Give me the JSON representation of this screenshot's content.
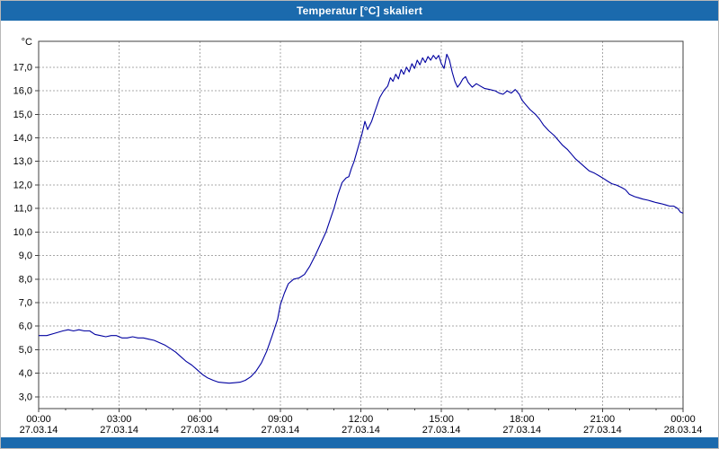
{
  "window": {
    "title": "Temperatur [°C] skaliert"
  },
  "colors": {
    "titlebar": "#1b6aad",
    "line": "#0000a0",
    "grid": "#a8a8a8",
    "frame": "#404040",
    "plot_background": "#ffffff"
  },
  "chart_data": {
    "type": "line",
    "title": "Temperatur [°C] skaliert",
    "xlabel": "",
    "ylabel": "°C",
    "grid": true,
    "legend": false,
    "x_range_hours": [
      0,
      24
    ],
    "y_range": [
      2.5,
      18.1
    ],
    "y_ticks": [
      {
        "value": 3,
        "label": "3,0"
      },
      {
        "value": 4,
        "label": "4,0"
      },
      {
        "value": 5,
        "label": "5,0"
      },
      {
        "value": 6,
        "label": "6,0"
      },
      {
        "value": 7,
        "label": "7,0"
      },
      {
        "value": 8,
        "label": "8,0"
      },
      {
        "value": 9,
        "label": "9,0"
      },
      {
        "value": 10,
        "label": "10,0"
      },
      {
        "value": 11,
        "label": "11,0"
      },
      {
        "value": 12,
        "label": "12,0"
      },
      {
        "value": 13,
        "label": "13,0"
      },
      {
        "value": 14,
        "label": "14,0"
      },
      {
        "value": 15,
        "label": "15,0"
      },
      {
        "value": 16,
        "label": "16,0"
      },
      {
        "value": 17,
        "label": "17,0"
      }
    ],
    "x_ticks": [
      {
        "hour": 0,
        "time": "00:00",
        "date": "27.03.14"
      },
      {
        "hour": 3,
        "time": "03:00",
        "date": "27.03.14"
      },
      {
        "hour": 6,
        "time": "06:00",
        "date": "27.03.14"
      },
      {
        "hour": 9,
        "time": "09:00",
        "date": "27.03.14"
      },
      {
        "hour": 12,
        "time": "12:00",
        "date": "27.03.14"
      },
      {
        "hour": 15,
        "time": "15:00",
        "date": "27.03.14"
      },
      {
        "hour": 18,
        "time": "18:00",
        "date": "27.03.14"
      },
      {
        "hour": 21,
        "time": "21:00",
        "date": "27.03.14"
      },
      {
        "hour": 24,
        "time": "00:00",
        "date": "28.03.14"
      }
    ],
    "series": [
      {
        "name": "Temperatur [°C]",
        "color": "#0000a0",
        "points": [
          [
            0.0,
            5.6
          ],
          [
            0.3,
            5.6
          ],
          [
            0.6,
            5.7
          ],
          [
            0.9,
            5.8
          ],
          [
            1.1,
            5.85
          ],
          [
            1.3,
            5.8
          ],
          [
            1.5,
            5.85
          ],
          [
            1.7,
            5.8
          ],
          [
            1.9,
            5.8
          ],
          [
            2.1,
            5.65
          ],
          [
            2.3,
            5.6
          ],
          [
            2.5,
            5.55
          ],
          [
            2.7,
            5.6
          ],
          [
            2.9,
            5.6
          ],
          [
            3.1,
            5.5
          ],
          [
            3.3,
            5.5
          ],
          [
            3.5,
            5.55
          ],
          [
            3.7,
            5.5
          ],
          [
            3.9,
            5.5
          ],
          [
            4.1,
            5.45
          ],
          [
            4.3,
            5.4
          ],
          [
            4.5,
            5.3
          ],
          [
            4.7,
            5.2
          ],
          [
            4.9,
            5.05
          ],
          [
            5.1,
            4.9
          ],
          [
            5.3,
            4.7
          ],
          [
            5.5,
            4.5
          ],
          [
            5.7,
            4.35
          ],
          [
            5.9,
            4.15
          ],
          [
            6.1,
            3.95
          ],
          [
            6.3,
            3.8
          ],
          [
            6.5,
            3.7
          ],
          [
            6.7,
            3.62
          ],
          [
            6.9,
            3.6
          ],
          [
            7.1,
            3.58
          ],
          [
            7.3,
            3.6
          ],
          [
            7.5,
            3.62
          ],
          [
            7.7,
            3.7
          ],
          [
            7.9,
            3.85
          ],
          [
            8.1,
            4.1
          ],
          [
            8.3,
            4.45
          ],
          [
            8.5,
            4.95
          ],
          [
            8.7,
            5.6
          ],
          [
            8.9,
            6.3
          ],
          [
            9.0,
            6.9
          ],
          [
            9.15,
            7.4
          ],
          [
            9.3,
            7.8
          ],
          [
            9.5,
            8.0
          ],
          [
            9.7,
            8.05
          ],
          [
            9.9,
            8.2
          ],
          [
            10.1,
            8.55
          ],
          [
            10.3,
            9.0
          ],
          [
            10.5,
            9.5
          ],
          [
            10.7,
            10.0
          ],
          [
            10.85,
            10.5
          ],
          [
            11.0,
            11.0
          ],
          [
            11.15,
            11.6
          ],
          [
            11.3,
            12.1
          ],
          [
            11.45,
            12.3
          ],
          [
            11.55,
            12.35
          ],
          [
            11.65,
            12.7
          ],
          [
            11.75,
            13.0
          ],
          [
            11.85,
            13.4
          ],
          [
            11.95,
            13.8
          ],
          [
            12.05,
            14.2
          ],
          [
            12.15,
            14.7
          ],
          [
            12.25,
            14.35
          ],
          [
            12.4,
            14.7
          ],
          [
            12.55,
            15.2
          ],
          [
            12.7,
            15.7
          ],
          [
            12.85,
            16.0
          ],
          [
            13.0,
            16.2
          ],
          [
            13.1,
            16.55
          ],
          [
            13.2,
            16.4
          ],
          [
            13.3,
            16.7
          ],
          [
            13.4,
            16.5
          ],
          [
            13.5,
            16.9
          ],
          [
            13.6,
            16.7
          ],
          [
            13.7,
            17.0
          ],
          [
            13.8,
            16.8
          ],
          [
            13.9,
            17.15
          ],
          [
            14.0,
            16.95
          ],
          [
            14.1,
            17.3
          ],
          [
            14.2,
            17.1
          ],
          [
            14.3,
            17.4
          ],
          [
            14.4,
            17.2
          ],
          [
            14.5,
            17.45
          ],
          [
            14.6,
            17.3
          ],
          [
            14.7,
            17.5
          ],
          [
            14.8,
            17.35
          ],
          [
            14.9,
            17.5
          ],
          [
            15.0,
            17.15
          ],
          [
            15.1,
            16.95
          ],
          [
            15.2,
            17.55
          ],
          [
            15.3,
            17.3
          ],
          [
            15.4,
            16.8
          ],
          [
            15.5,
            16.4
          ],
          [
            15.6,
            16.15
          ],
          [
            15.7,
            16.3
          ],
          [
            15.8,
            16.5
          ],
          [
            15.9,
            16.6
          ],
          [
            16.0,
            16.35
          ],
          [
            16.15,
            16.15
          ],
          [
            16.3,
            16.3
          ],
          [
            16.45,
            16.2
          ],
          [
            16.6,
            16.1
          ],
          [
            16.8,
            16.05
          ],
          [
            17.0,
            16.0
          ],
          [
            17.15,
            15.9
          ],
          [
            17.3,
            15.85
          ],
          [
            17.45,
            16.0
          ],
          [
            17.6,
            15.9
          ],
          [
            17.75,
            16.05
          ],
          [
            17.9,
            15.85
          ],
          [
            18.0,
            15.6
          ],
          [
            18.15,
            15.4
          ],
          [
            18.3,
            15.2
          ],
          [
            18.5,
            15.0
          ],
          [
            18.65,
            14.8
          ],
          [
            18.8,
            14.55
          ],
          [
            19.0,
            14.3
          ],
          [
            19.2,
            14.1
          ],
          [
            19.35,
            13.9
          ],
          [
            19.5,
            13.7
          ],
          [
            19.7,
            13.5
          ],
          [
            19.85,
            13.3
          ],
          [
            20.0,
            13.1
          ],
          [
            20.2,
            12.9
          ],
          [
            20.35,
            12.75
          ],
          [
            20.5,
            12.6
          ],
          [
            20.7,
            12.5
          ],
          [
            20.85,
            12.4
          ],
          [
            21.0,
            12.3
          ],
          [
            21.2,
            12.15
          ],
          [
            21.35,
            12.05
          ],
          [
            21.5,
            12.0
          ],
          [
            21.7,
            11.9
          ],
          [
            21.85,
            11.8
          ],
          [
            22.0,
            11.6
          ],
          [
            22.2,
            11.5
          ],
          [
            22.35,
            11.45
          ],
          [
            22.5,
            11.4
          ],
          [
            22.7,
            11.35
          ],
          [
            22.85,
            11.3
          ],
          [
            23.0,
            11.25
          ],
          [
            23.2,
            11.2
          ],
          [
            23.35,
            11.15
          ],
          [
            23.5,
            11.1
          ],
          [
            23.65,
            11.1
          ],
          [
            23.8,
            11.0
          ],
          [
            23.9,
            10.85
          ],
          [
            24.0,
            10.8
          ]
        ]
      }
    ]
  }
}
